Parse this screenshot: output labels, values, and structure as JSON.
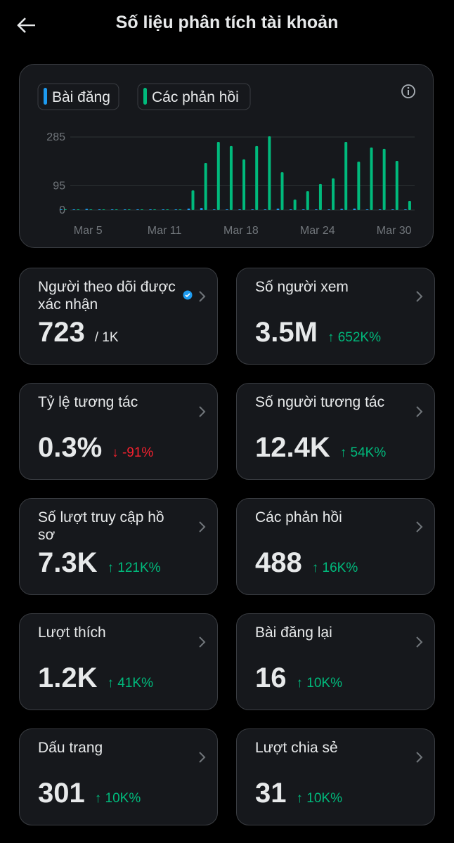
{
  "header": {
    "title": "Số liệu phân tích tài khoản"
  },
  "chart_data": {
    "type": "bar",
    "categories": [
      null,
      "Mar 5",
      null,
      null,
      null,
      null,
      null,
      "Mar 11",
      null,
      null,
      null,
      null,
      null,
      "Mar 18",
      null,
      null,
      null,
      null,
      null,
      "Mar 24",
      null,
      null,
      null,
      null,
      null,
      "Mar 30",
      null,
      null
    ],
    "series": [
      {
        "name": "Bài đăng",
        "color": "#1d9bf0",
        "values": [
          0,
          0,
          2,
          0,
          0,
          0,
          0,
          0,
          0,
          0,
          3,
          5,
          0,
          0,
          0,
          0,
          0,
          3,
          0,
          0,
          0,
          0,
          2,
          3,
          0,
          0,
          0,
          0
        ]
      },
      {
        "name": "Các phản hồi",
        "color": "#00ba7c",
        "values": [
          0,
          0,
          0,
          0,
          0,
          0,
          0,
          0,
          0,
          0,
          74,
          181,
          263,
          247,
          195,
          247,
          285,
          145,
          38,
          71,
          99,
          121,
          263,
          186,
          241,
          236,
          189,
          33
        ]
      }
    ],
    "ylim": [
      0,
      285
    ],
    "yticks": [
      0,
      95,
      285
    ],
    "grid": true
  },
  "cards": [
    {
      "label": "Người theo dõi được xác nhận",
      "value": "723",
      "sub": "/ 1K",
      "color": "#e7e9ea"
    },
    {
      "label": "Số người xem",
      "value": "3.5M",
      "sub": "↑ 652K%",
      "color": "#00ba7c"
    },
    {
      "label": "Tỷ lệ tương tác",
      "value": "0.3%",
      "sub": "↓ -91%",
      "color": "#f4212e"
    },
    {
      "label": "Số người tương tác",
      "value": "12.4K",
      "sub": "↑ 54K%",
      "color": "#00ba7c"
    },
    {
      "label": "Số lượt truy cập hồ sơ",
      "value": "7.3K",
      "sub": "↑ 121K%",
      "color": "#00ba7c"
    },
    {
      "label": "Các phản hồi",
      "value": "488",
      "sub": "↑ 16K%",
      "color": "#00ba7c"
    },
    {
      "label": "Lượt thích",
      "value": "1.2K",
      "sub": "↑ 41K%",
      "color": "#00ba7c"
    },
    {
      "label": "Bài đăng lại",
      "value": "16",
      "sub": "↑ 10K%",
      "color": "#00ba7c"
    },
    {
      "label": "Dấu trang",
      "value": "301",
      "sub": "↑ 10K%",
      "color": "#00ba7c"
    },
    {
      "label": "Lượt chia sẻ",
      "value": "31",
      "sub": "↑ 10K%",
      "color": "#00ba7c"
    }
  ]
}
